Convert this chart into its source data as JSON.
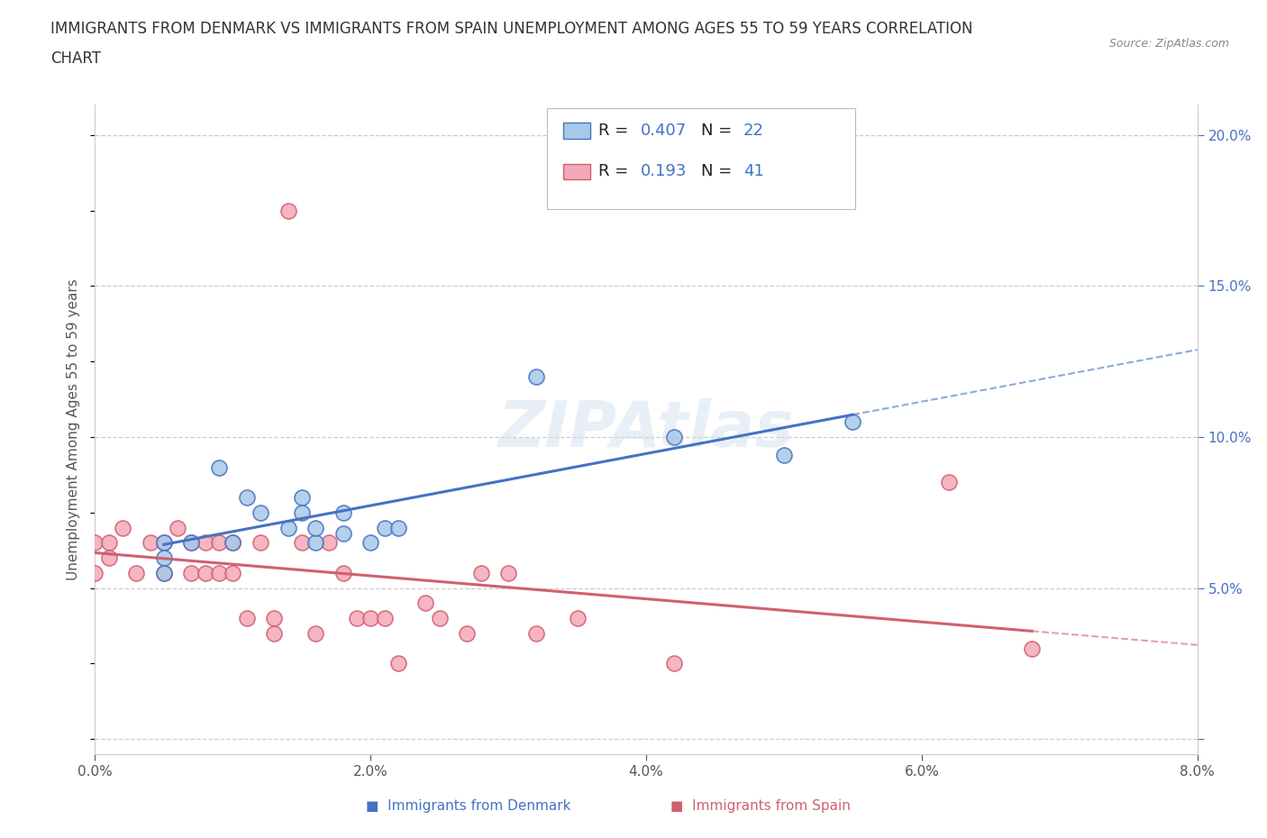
{
  "title_line1": "IMMIGRANTS FROM DENMARK VS IMMIGRANTS FROM SPAIN UNEMPLOYMENT AMONG AGES 55 TO 59 YEARS CORRELATION",
  "title_line2": "CHART",
  "source_text": "Source: ZipAtlas.com",
  "ylabel": "Unemployment Among Ages 55 to 59 years",
  "xlim": [
    0.0,
    0.08
  ],
  "ylim": [
    -0.005,
    0.21
  ],
  "xticks": [
    0.0,
    0.02,
    0.04,
    0.06,
    0.08
  ],
  "xticklabels": [
    "0.0%",
    "2.0%",
    "4.0%",
    "6.0%",
    "8.0%"
  ],
  "ytick_vals": [
    0.0,
    0.05,
    0.1,
    0.15,
    0.2
  ],
  "yticklabels_right": [
    "",
    "5.0%",
    "10.0%",
    "15.0%",
    "20.0%"
  ],
  "watermark": "ZIPAtlas",
  "denmark_R": 0.407,
  "denmark_N": 22,
  "spain_R": 0.193,
  "spain_N": 41,
  "denmark_fill": "#a8c8e8",
  "denmark_edge": "#4472c4",
  "spain_fill": "#f4a8b8",
  "spain_edge": "#d06070",
  "denmark_line": "#4472c4",
  "spain_line": "#d06070",
  "grid_color": "#cccccc",
  "denmark_x": [
    0.005,
    0.005,
    0.005,
    0.007,
    0.009,
    0.01,
    0.011,
    0.012,
    0.014,
    0.015,
    0.015,
    0.016,
    0.016,
    0.018,
    0.018,
    0.02,
    0.021,
    0.022,
    0.032,
    0.05,
    0.055,
    0.042
  ],
  "denmark_y": [
    0.065,
    0.06,
    0.055,
    0.065,
    0.09,
    0.065,
    0.08,
    0.075,
    0.07,
    0.075,
    0.08,
    0.065,
    0.07,
    0.068,
    0.075,
    0.065,
    0.07,
    0.07,
    0.12,
    0.094,
    0.105,
    0.1
  ],
  "spain_x": [
    0.0,
    0.0,
    0.001,
    0.001,
    0.002,
    0.003,
    0.004,
    0.005,
    0.005,
    0.006,
    0.007,
    0.007,
    0.008,
    0.008,
    0.009,
    0.009,
    0.01,
    0.01,
    0.011,
    0.012,
    0.013,
    0.013,
    0.014,
    0.015,
    0.016,
    0.017,
    0.018,
    0.019,
    0.02,
    0.021,
    0.022,
    0.024,
    0.025,
    0.027,
    0.028,
    0.03,
    0.032,
    0.035,
    0.042,
    0.062,
    0.068
  ],
  "spain_y": [
    0.065,
    0.055,
    0.065,
    0.06,
    0.07,
    0.055,
    0.065,
    0.055,
    0.065,
    0.07,
    0.065,
    0.055,
    0.065,
    0.055,
    0.065,
    0.055,
    0.065,
    0.055,
    0.04,
    0.065,
    0.04,
    0.035,
    0.175,
    0.065,
    0.035,
    0.065,
    0.055,
    0.04,
    0.04,
    0.04,
    0.025,
    0.045,
    0.04,
    0.035,
    0.055,
    0.055,
    0.035,
    0.04,
    0.025,
    0.085,
    0.03
  ],
  "legend_label_denmark": "Immigrants from Denmark",
  "legend_label_spain": "Immigrants from Spain",
  "dk_line_color": "#4472c4",
  "sp_line_color": "#d06070"
}
